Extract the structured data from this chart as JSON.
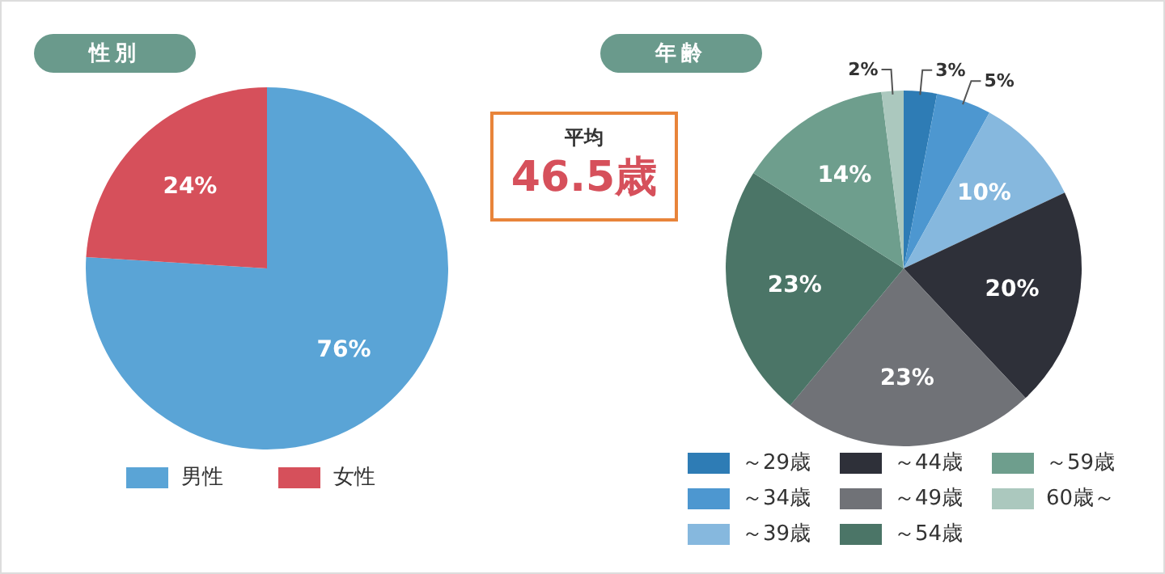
{
  "chart_data": [
    {
      "type": "pie",
      "title": "性別",
      "categories": [
        "男性",
        "女性"
      ],
      "values": [
        76,
        24
      ],
      "colors": [
        "#5aa4d6",
        "#d6505b"
      ],
      "value_labels": [
        "76%",
        "24%"
      ],
      "legend": "bottom"
    },
    {
      "type": "other",
      "title": "平均",
      "annotations": [
        "46.5歳"
      ]
    },
    {
      "type": "pie",
      "title": "年齢",
      "categories": [
        "～29歳",
        "～34歳",
        "～39歳",
        "～44歳",
        "～49歳",
        "～54歳",
        "～59歳",
        "60歳～"
      ],
      "values": [
        3,
        5,
        10,
        20,
        23,
        23,
        14,
        2
      ],
      "colors": [
        "#2e7cb5",
        "#4d97d0",
        "#86b8de",
        "#2e3039",
        "#707277",
        "#4b7567",
        "#6e9e8d",
        "#abc8be"
      ],
      "value_labels": [
        "3%",
        "5%",
        "10%",
        "20%",
        "23%",
        "23%",
        "14%",
        "2%"
      ],
      "legend": "bottom"
    }
  ]
}
